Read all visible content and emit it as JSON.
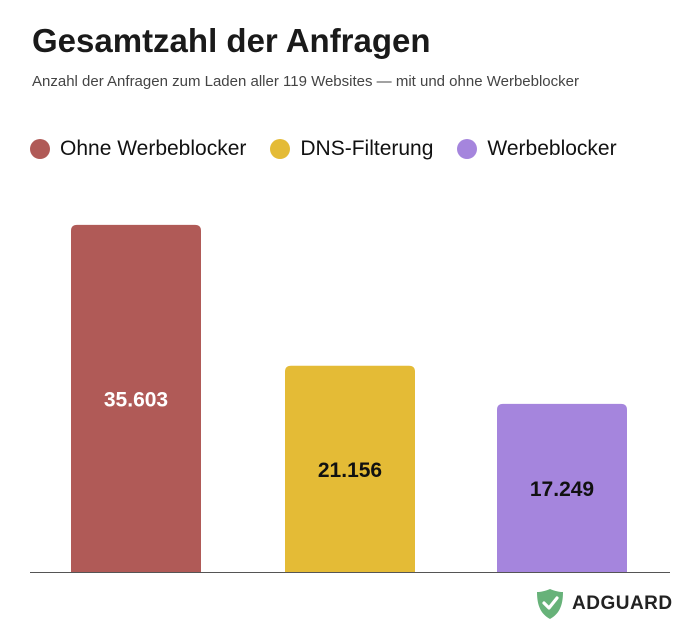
{
  "chart_data": {
    "type": "bar",
    "title": "Gesamtzahl der Anfragen",
    "subtitle": "Anzahl der Anfragen zum Laden aller 119 Websites — mit und ohne Werbeblocker",
    "categories": [
      "Ohne Werbeblocker",
      "DNS-Filterung",
      "Werbeblocker"
    ],
    "values": [
      35603,
      21156,
      17249
    ],
    "data_labels": [
      "35.603",
      "21.156",
      "17.249"
    ],
    "colors": [
      "#b05a57",
      "#e4bb36",
      "#a585dd"
    ],
    "label_colors": [
      "#ffffff",
      "#111111",
      "#111111"
    ],
    "xlabel": "",
    "ylabel": "",
    "ylim": [
      0,
      36000
    ],
    "grid": false,
    "legend_position": "top-left"
  },
  "brand": {
    "name": "ADGUARD",
    "icon": "shield-check-icon",
    "color": "#67b279"
  }
}
